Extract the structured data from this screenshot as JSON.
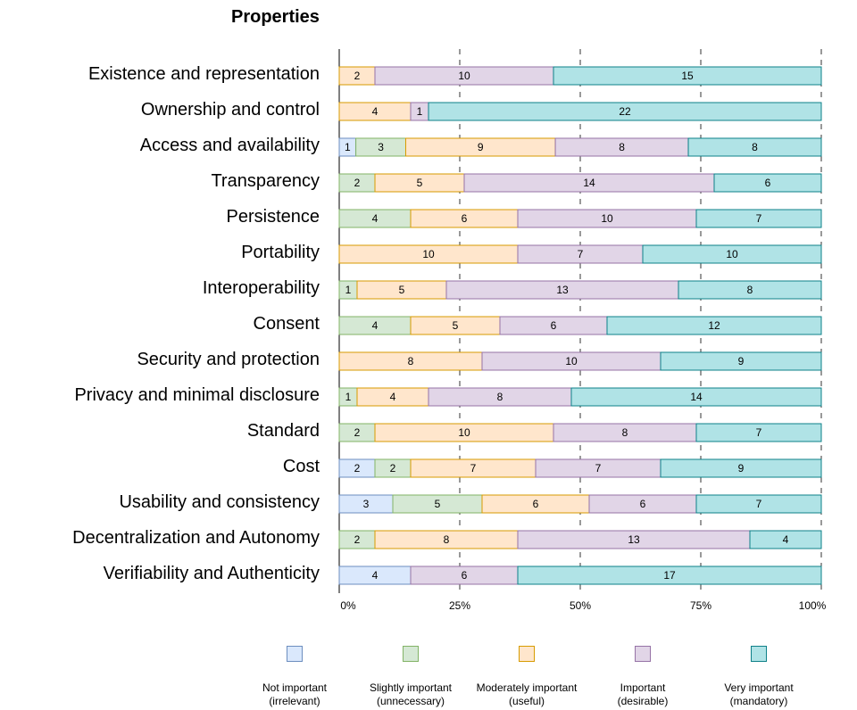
{
  "chart_data": {
    "type": "bar",
    "orientation": "horizontal",
    "stacked": "percent",
    "title": "Properties",
    "xlabel": "",
    "ylabel": "",
    "xlim": [
      0,
      100
    ],
    "x_ticks": [
      "0%",
      "25%",
      "50%",
      "75%",
      "100%"
    ],
    "grid": "vertical dashed lines at 25%, 50%, 75%, 100%",
    "legend_position": "bottom",
    "categories": [
      "Existence and representation",
      "Ownership and control",
      "Access and availability",
      "Transparency",
      "Persistence",
      "Portability",
      "Interoperability",
      "Consent",
      "Security and protection",
      "Privacy and minimal disclosure",
      "Standard",
      "Cost",
      "Usability and consistency",
      "Decentralization and Autonomy",
      "Verifiability and Authenticity"
    ],
    "series": [
      {
        "name": "Not important (irrelevant)",
        "label_lines": [
          "Not important",
          "(irrelevant)"
        ],
        "fill": "#dae8fc",
        "stroke": "#6c8ebf",
        "values": [
          0,
          0,
          1,
          0,
          0,
          0,
          0,
          0,
          0,
          0,
          0,
          2,
          3,
          0,
          4
        ]
      },
      {
        "name": "Slightly important (unnecessary)",
        "label_lines": [
          "Slightly important",
          "(unnecessary)"
        ],
        "fill": "#d5e8d4",
        "stroke": "#82b366",
        "values": [
          0,
          0,
          3,
          2,
          4,
          0,
          1,
          4,
          0,
          1,
          2,
          2,
          5,
          2,
          0
        ]
      },
      {
        "name": "Moderately important (useful)",
        "label_lines": [
          "Moderately important",
          "(useful)"
        ],
        "fill": "#ffe6cc",
        "stroke": "#d79b00",
        "values": [
          2,
          4,
          9,
          5,
          6,
          10,
          5,
          5,
          8,
          4,
          10,
          7,
          6,
          8,
          0
        ]
      },
      {
        "name": "Important (desirable)",
        "label_lines": [
          "Important",
          "(desirable)"
        ],
        "fill": "#e1d5e7",
        "stroke": "#9673a6",
        "values": [
          10,
          1,
          8,
          14,
          10,
          7,
          13,
          6,
          10,
          8,
          8,
          7,
          6,
          13,
          6
        ]
      },
      {
        "name": "Very important (mandatory)",
        "label_lines": [
          "Very important",
          "(mandatory)"
        ],
        "fill": "#b0e3e6",
        "stroke": "#0e8088",
        "values": [
          15,
          22,
          8,
          6,
          7,
          10,
          8,
          12,
          9,
          14,
          7,
          9,
          7,
          4,
          17
        ]
      }
    ]
  }
}
